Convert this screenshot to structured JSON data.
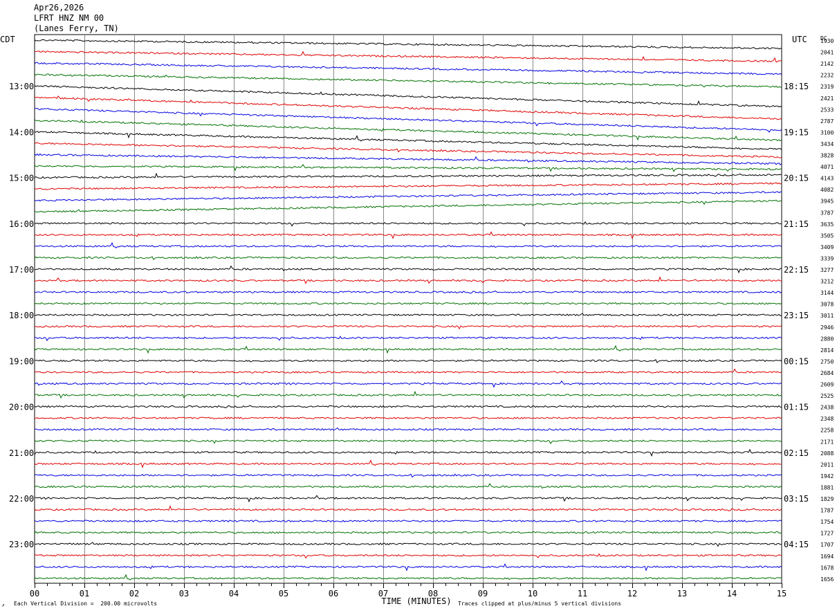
{
  "header": {
    "date": "Apr26,2026",
    "station": "LFRT HNZ NM 00",
    "location": "(Lanes Ferry, TN)"
  },
  "chart_data": {
    "type": "line",
    "title": "Apr26,2026  LFRT HNZ NM 00 (Lanes Ferry, TN)",
    "left_timezone": "CDT",
    "right_timezone": "UTC",
    "dc_label": "DC",
    "xlabel": "TIME (MINUTES)",
    "x_ticks": [
      "00",
      "01",
      "02",
      "03",
      "04",
      "05",
      "06",
      "07",
      "08",
      "09",
      "10",
      "11",
      "12",
      "13",
      "14",
      "15"
    ],
    "xlim": [
      0,
      15
    ],
    "grid": true,
    "left_hour_labels": [
      "13:00",
      "14:00",
      "15:00",
      "16:00",
      "17:00",
      "18:00",
      "19:00",
      "20:00",
      "21:00",
      "22:00",
      "23:00"
    ],
    "right_hour_labels": [
      "18:15",
      "19:15",
      "20:15",
      "21:15",
      "22:15",
      "23:15",
      "00:15",
      "01:15",
      "02:15",
      "03:15",
      "04:15"
    ],
    "label_first_row": 4,
    "label_row_step": 4,
    "trace_colors": [
      "#000000",
      "#e00000",
      "#0000e0",
      "#007000"
    ],
    "dc_values": [
      1930,
      2041,
      2142,
      2232,
      2319,
      2421,
      2533,
      2787,
      3100,
      3434,
      3828,
      4071,
      4143,
      4082,
      3945,
      3787,
      3635,
      3505,
      3409,
      3339,
      3277,
      3212,
      3144,
      3078,
      3011,
      2946,
      2880,
      2814,
      2750,
      2684,
      2609,
      2525,
      2438,
      2348,
      2258,
      2171,
      2088,
      2011,
      1942,
      1881,
      1829,
      1787,
      1754,
      1727,
      1707,
      1694,
      1678,
      1656
    ],
    "footer_left": "Each Vertical Division =  200.00 microvolts",
    "footer_right": "Traces clipped at plus/minus 5 vertical divisions"
  }
}
